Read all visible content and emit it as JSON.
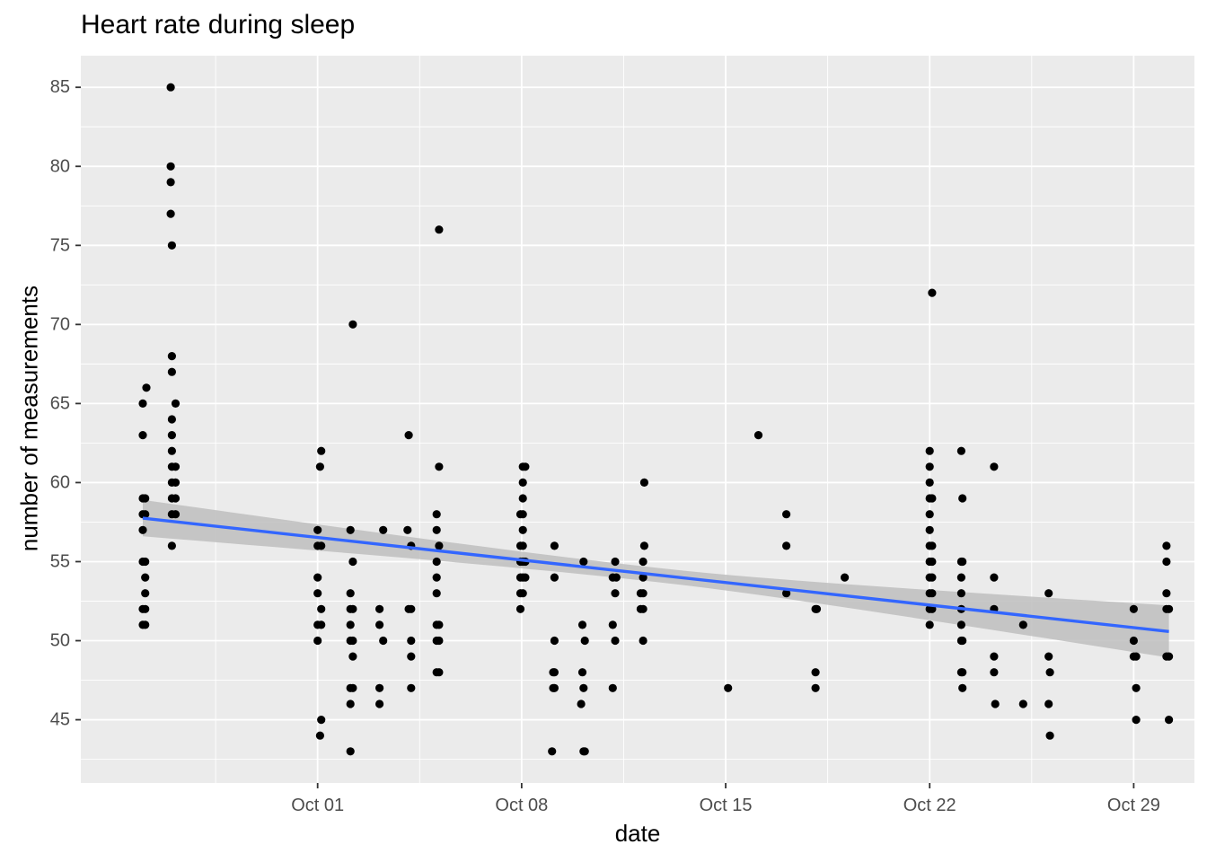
{
  "chart_data": {
    "type": "scatter",
    "title": "Heart rate during sleep",
    "xlabel": "date",
    "ylabel": "number of measurements",
    "x_type": "date",
    "xlim": [
      "2023-09-22T21:00",
      "2023-10-31T02:00"
    ],
    "ylim": [
      41.0,
      87.0
    ],
    "x_ticks": [
      {
        "date": "2023-10-01",
        "label": "Oct 01"
      },
      {
        "date": "2023-10-08",
        "label": "Oct 08"
      },
      {
        "date": "2023-10-15",
        "label": "Oct 15"
      },
      {
        "date": "2023-10-22",
        "label": "Oct 22"
      },
      {
        "date": "2023-10-29",
        "label": "Oct 29"
      }
    ],
    "y_ticks": [
      45,
      50,
      55,
      60,
      65,
      70,
      75,
      80,
      85
    ],
    "grid": true,
    "colors": {
      "panel": "#EBEBEB",
      "grid": "#FFFFFF",
      "points": "#000000",
      "trend_line": "#3366FF",
      "confidence_band": "#BEBEBE"
    },
    "series": [
      {
        "points": [
          [
            "2023-09-25T00:00",
            51
          ],
          [
            "2023-09-25T00:00",
            52
          ],
          [
            "2023-09-25T00:00",
            55
          ],
          [
            "2023-09-25T00:00",
            57
          ],
          [
            "2023-09-25T00:00",
            58
          ],
          [
            "2023-09-25T00:00",
            59
          ],
          [
            "2023-09-25T00:00",
            63
          ],
          [
            "2023-09-25T00:00",
            65
          ],
          [
            "2023-09-25T02:00",
            51
          ],
          [
            "2023-09-25T02:00",
            52
          ],
          [
            "2023-09-25T02:00",
            53
          ],
          [
            "2023-09-25T02:00",
            54
          ],
          [
            "2023-09-25T02:00",
            55
          ],
          [
            "2023-09-25T02:00",
            58
          ],
          [
            "2023-09-25T02:00",
            59
          ],
          [
            "2023-09-25T03:00",
            66
          ],
          [
            "2023-09-25T23:00",
            85
          ],
          [
            "2023-09-25T23:00",
            80
          ],
          [
            "2023-09-25T23:00",
            79
          ],
          [
            "2023-09-25T23:00",
            77
          ],
          [
            "2023-09-26T00:00",
            75
          ],
          [
            "2023-09-26T00:00",
            68
          ],
          [
            "2023-09-26T00:00",
            67
          ],
          [
            "2023-09-26T00:00",
            64
          ],
          [
            "2023-09-26T00:00",
            63
          ],
          [
            "2023-09-26T00:00",
            62
          ],
          [
            "2023-09-26T00:00",
            61
          ],
          [
            "2023-09-26T00:00",
            60
          ],
          [
            "2023-09-26T00:00",
            59
          ],
          [
            "2023-09-26T00:00",
            58
          ],
          [
            "2023-09-26T00:00",
            56
          ],
          [
            "2023-09-26T03:00",
            65
          ],
          [
            "2023-09-26T03:00",
            61
          ],
          [
            "2023-09-26T03:00",
            60
          ],
          [
            "2023-09-26T03:00",
            59
          ],
          [
            "2023-09-26T03:00",
            58
          ],
          [
            "2023-10-01T00:00",
            57
          ],
          [
            "2023-10-01T00:00",
            56
          ],
          [
            "2023-10-01T00:00",
            54
          ],
          [
            "2023-10-01T00:00",
            53
          ],
          [
            "2023-10-01T00:00",
            51
          ],
          [
            "2023-10-01T00:00",
            50
          ],
          [
            "2023-10-01T02:00",
            44
          ],
          [
            "2023-10-01T02:00",
            61
          ],
          [
            "2023-10-01T03:00",
            62
          ],
          [
            "2023-10-01T03:00",
            56
          ],
          [
            "2023-10-01T03:00",
            52
          ],
          [
            "2023-10-01T03:00",
            51
          ],
          [
            "2023-10-01T03:00",
            45
          ],
          [
            "2023-10-02T03:00",
            57
          ],
          [
            "2023-10-02T03:00",
            53
          ],
          [
            "2023-10-02T03:00",
            52
          ],
          [
            "2023-10-02T03:00",
            51
          ],
          [
            "2023-10-02T03:00",
            50
          ],
          [
            "2023-10-02T03:00",
            47
          ],
          [
            "2023-10-02T03:00",
            46
          ],
          [
            "2023-10-02T03:00",
            43
          ],
          [
            "2023-10-02T05:00",
            70
          ],
          [
            "2023-10-02T05:00",
            55
          ],
          [
            "2023-10-02T05:00",
            52
          ],
          [
            "2023-10-02T05:00",
            50
          ],
          [
            "2023-10-02T05:00",
            49
          ],
          [
            "2023-10-02T05:00",
            47
          ],
          [
            "2023-10-03T03:00",
            52
          ],
          [
            "2023-10-03T03:00",
            51
          ],
          [
            "2023-10-03T03:00",
            47
          ],
          [
            "2023-10-03T03:00",
            46
          ],
          [
            "2023-10-03T06:00",
            57
          ],
          [
            "2023-10-03T06:00",
            50
          ],
          [
            "2023-10-04T02:00",
            57
          ],
          [
            "2023-10-04T03:00",
            63
          ],
          [
            "2023-10-04T03:00",
            52
          ],
          [
            "2023-10-04T05:00",
            56
          ],
          [
            "2023-10-04T05:00",
            52
          ],
          [
            "2023-10-04T05:00",
            50
          ],
          [
            "2023-10-04T05:00",
            49
          ],
          [
            "2023-10-04T05:00",
            47
          ],
          [
            "2023-10-05T02:00",
            58
          ],
          [
            "2023-10-05T02:00",
            57
          ],
          [
            "2023-10-05T02:00",
            55
          ],
          [
            "2023-10-05T02:00",
            54
          ],
          [
            "2023-10-05T02:00",
            53
          ],
          [
            "2023-10-05T02:00",
            51
          ],
          [
            "2023-10-05T02:00",
            50
          ],
          [
            "2023-10-05T02:00",
            48
          ],
          [
            "2023-10-05T04:00",
            76
          ],
          [
            "2023-10-05T04:00",
            61
          ],
          [
            "2023-10-05T04:00",
            56
          ],
          [
            "2023-10-05T04:00",
            51
          ],
          [
            "2023-10-05T04:00",
            50
          ],
          [
            "2023-10-05T04:00",
            48
          ],
          [
            "2023-10-07T23:00",
            56
          ],
          [
            "2023-10-07T23:00",
            55
          ],
          [
            "2023-10-07T23:00",
            54
          ],
          [
            "2023-10-07T23:00",
            53
          ],
          [
            "2023-10-07T23:00",
            52
          ],
          [
            "2023-10-07T23:00",
            58
          ],
          [
            "2023-10-08T01:00",
            61
          ],
          [
            "2023-10-08T01:00",
            60
          ],
          [
            "2023-10-08T01:00",
            59
          ],
          [
            "2023-10-08T01:00",
            58
          ],
          [
            "2023-10-08T01:00",
            57
          ],
          [
            "2023-10-08T01:00",
            56
          ],
          [
            "2023-10-08T01:00",
            55
          ],
          [
            "2023-10-08T01:00",
            54
          ],
          [
            "2023-10-08T01:00",
            53
          ],
          [
            "2023-10-08T03:00",
            61
          ],
          [
            "2023-10-08T03:00",
            55
          ],
          [
            "2023-10-08T03:00",
            54
          ],
          [
            "2023-10-09T01:00",
            43
          ],
          [
            "2023-10-09T02:00",
            48
          ],
          [
            "2023-10-09T02:00",
            47
          ],
          [
            "2023-10-09T03:00",
            56
          ],
          [
            "2023-10-09T03:00",
            54
          ],
          [
            "2023-10-09T03:00",
            50
          ],
          [
            "2023-10-09T03:00",
            48
          ],
          [
            "2023-10-09T03:00",
            47
          ],
          [
            "2023-10-10T01:00",
            46
          ],
          [
            "2023-10-10T02:00",
            51
          ],
          [
            "2023-10-10T02:00",
            48
          ],
          [
            "2023-10-10T03:00",
            55
          ],
          [
            "2023-10-10T03:00",
            47
          ],
          [
            "2023-10-10T03:00",
            43
          ],
          [
            "2023-10-10T04:00",
            50
          ],
          [
            "2023-10-10T04:00",
            43
          ],
          [
            "2023-10-11T03:00",
            51
          ],
          [
            "2023-10-11T03:00",
            54
          ],
          [
            "2023-10-11T03:00",
            47
          ],
          [
            "2023-10-11T05:00",
            55
          ],
          [
            "2023-10-11T05:00",
            53
          ],
          [
            "2023-10-11T05:00",
            50
          ],
          [
            "2023-10-11T06:00",
            54
          ],
          [
            "2023-10-12T02:00",
            53
          ],
          [
            "2023-10-12T02:00",
            52
          ],
          [
            "2023-10-12T04:00",
            55
          ],
          [
            "2023-10-12T04:00",
            54
          ],
          [
            "2023-10-12T04:00",
            53
          ],
          [
            "2023-10-12T04:00",
            52
          ],
          [
            "2023-10-12T04:00",
            50
          ],
          [
            "2023-10-12T05:00",
            60
          ],
          [
            "2023-10-12T05:00",
            56
          ],
          [
            "2023-10-15T02:00",
            47
          ],
          [
            "2023-10-16T03:00",
            63
          ],
          [
            "2023-10-17T02:00",
            58
          ],
          [
            "2023-10-17T02:00",
            56
          ],
          [
            "2023-10-17T02:00",
            53
          ],
          [
            "2023-10-18T02:00",
            52
          ],
          [
            "2023-10-18T02:00",
            48
          ],
          [
            "2023-10-18T02:00",
            47
          ],
          [
            "2023-10-18T03:00",
            52
          ],
          [
            "2023-10-19T02:00",
            54
          ],
          [
            "2023-10-22T00:00",
            62
          ],
          [
            "2023-10-22T00:00",
            61
          ],
          [
            "2023-10-22T00:00",
            60
          ],
          [
            "2023-10-22T00:00",
            59
          ],
          [
            "2023-10-22T00:00",
            58
          ],
          [
            "2023-10-22T00:00",
            57
          ],
          [
            "2023-10-22T00:00",
            56
          ],
          [
            "2023-10-22T00:00",
            55
          ],
          [
            "2023-10-22T00:00",
            54
          ],
          [
            "2023-10-22T00:00",
            53
          ],
          [
            "2023-10-22T00:00",
            52
          ],
          [
            "2023-10-22T00:00",
            51
          ],
          [
            "2023-10-22T02:00",
            72
          ],
          [
            "2023-10-22T02:00",
            59
          ],
          [
            "2023-10-22T02:00",
            56
          ],
          [
            "2023-10-22T02:00",
            55
          ],
          [
            "2023-10-22T02:00",
            54
          ],
          [
            "2023-10-22T02:00",
            53
          ],
          [
            "2023-10-22T02:00",
            52
          ],
          [
            "2023-10-23T02:00",
            62
          ],
          [
            "2023-10-23T02:00",
            55
          ],
          [
            "2023-10-23T02:00",
            54
          ],
          [
            "2023-10-23T02:00",
            53
          ],
          [
            "2023-10-23T02:00",
            52
          ],
          [
            "2023-10-23T02:00",
            51
          ],
          [
            "2023-10-23T02:00",
            50
          ],
          [
            "2023-10-23T02:00",
            48
          ],
          [
            "2023-10-23T03:00",
            59
          ],
          [
            "2023-10-23T03:00",
            55
          ],
          [
            "2023-10-23T03:00",
            50
          ],
          [
            "2023-10-23T03:00",
            48
          ],
          [
            "2023-10-23T03:00",
            47
          ],
          [
            "2023-10-24T05:00",
            61
          ],
          [
            "2023-10-24T05:00",
            54
          ],
          [
            "2023-10-24T05:00",
            52
          ],
          [
            "2023-10-24T05:00",
            49
          ],
          [
            "2023-10-24T05:00",
            48
          ],
          [
            "2023-10-24T06:00",
            46
          ],
          [
            "2023-10-25T05:00",
            51
          ],
          [
            "2023-10-25T05:00",
            46
          ],
          [
            "2023-10-26T02:00",
            53
          ],
          [
            "2023-10-26T02:00",
            49
          ],
          [
            "2023-10-26T02:00",
            46
          ],
          [
            "2023-10-26T03:00",
            48
          ],
          [
            "2023-10-26T03:00",
            44
          ],
          [
            "2023-10-29T00:00",
            52
          ],
          [
            "2023-10-29T00:00",
            50
          ],
          [
            "2023-10-29T00:00",
            49
          ],
          [
            "2023-10-29T02:00",
            49
          ],
          [
            "2023-10-29T02:00",
            47
          ],
          [
            "2023-10-29T02:00",
            45
          ],
          [
            "2023-10-30T03:00",
            56
          ],
          [
            "2023-10-30T03:00",
            55
          ],
          [
            "2023-10-30T03:00",
            53
          ],
          [
            "2023-10-30T03:00",
            52
          ],
          [
            "2023-10-30T03:00",
            49
          ],
          [
            "2023-10-30T05:00",
            52
          ],
          [
            "2023-10-30T05:00",
            49
          ],
          [
            "2023-10-30T05:00",
            45
          ]
        ]
      }
    ],
    "trend": {
      "start": [
        "2023-09-25T00:00",
        57.75
      ],
      "end": [
        "2023-10-30T05:00",
        50.58
      ],
      "band_halfwidth_start": 1.15,
      "band_halfwidth_mid": 0.45,
      "band_halfwidth_end": 1.65
    }
  }
}
